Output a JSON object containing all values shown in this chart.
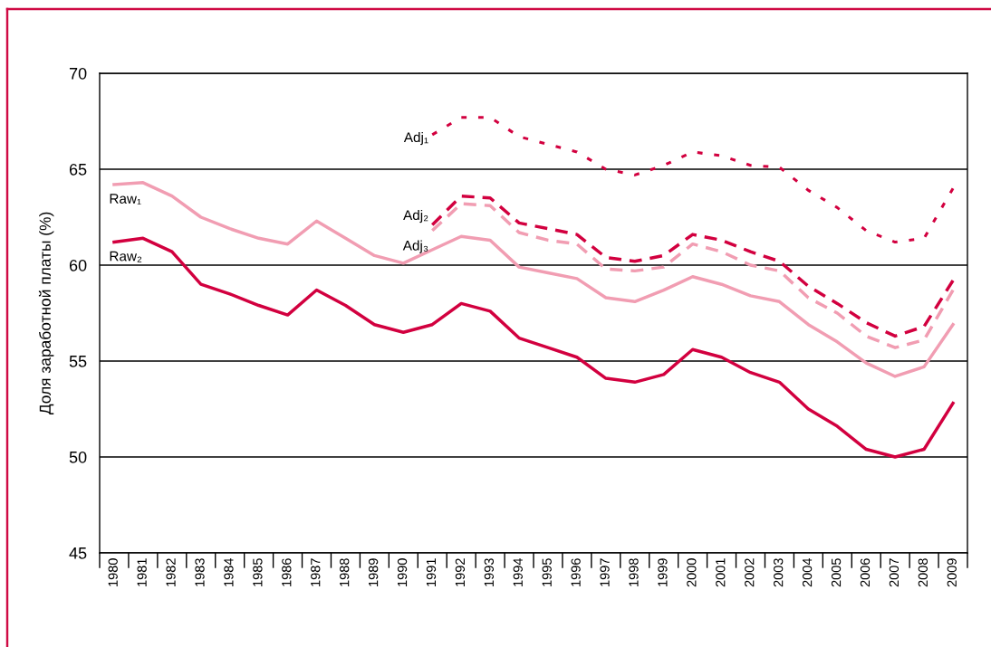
{
  "chart_data": {
    "type": "line",
    "ylabel": "Доля заработной платы (%)",
    "categories": [
      "1980",
      "1981",
      "1982",
      "1983",
      "1984",
      "1985",
      "1986",
      "1987",
      "1988",
      "1989",
      "1990",
      "1991",
      "1992",
      "1993",
      "1994",
      "1995",
      "1996",
      "1997",
      "1998",
      "1999",
      "2000",
      "2001",
      "2002",
      "2003",
      "2004",
      "2005",
      "2006",
      "2007",
      "2008",
      "2009"
    ],
    "series": [
      {
        "name": "Raw₁",
        "color": "#f19db2",
        "line_style": "solid",
        "values": [
          64.2,
          64.3,
          63.6,
          62.5,
          61.9,
          61.4,
          61.1,
          62.3,
          61.4,
          60.5,
          60.1,
          60.8,
          61.5,
          61.3,
          59.9,
          59.6,
          59.3,
          58.3,
          58.1,
          58.7,
          59.4,
          59.0,
          58.4,
          58.1,
          56.9,
          56.0,
          54.9,
          54.2,
          54.7,
          56.9
        ]
      },
      {
        "name": "Raw₂",
        "color": "#d2003f",
        "line_style": "solid",
        "values": [
          61.2,
          61.4,
          60.7,
          59.0,
          58.5,
          57.9,
          57.4,
          58.7,
          57.9,
          56.9,
          56.5,
          56.9,
          58.0,
          57.6,
          56.2,
          55.7,
          55.2,
          54.1,
          53.9,
          54.3,
          55.6,
          55.2,
          54.4,
          53.9,
          52.5,
          51.6,
          50.4,
          50.0,
          50.4,
          52.8
        ]
      },
      {
        "name": "Adj₁",
        "color": "#d2003f",
        "line_style": "dotted",
        "values": [
          null,
          null,
          null,
          null,
          null,
          null,
          null,
          null,
          null,
          null,
          null,
          66.8,
          67.7,
          67.7,
          66.7,
          66.3,
          65.9,
          65.0,
          64.7,
          65.2,
          65.9,
          65.7,
          65.2,
          65.1,
          63.9,
          63.0,
          61.8,
          61.2,
          61.4,
          64.0
        ]
      },
      {
        "name": "Adj₂",
        "color": "#d2003f",
        "line_style": "dashed",
        "values": [
          null,
          null,
          null,
          null,
          null,
          null,
          null,
          null,
          null,
          null,
          null,
          62.1,
          63.6,
          63.5,
          62.2,
          61.9,
          61.6,
          60.4,
          60.2,
          60.5,
          61.6,
          61.3,
          60.7,
          60.2,
          58.9,
          58.0,
          57.0,
          56.3,
          56.8,
          59.2
        ]
      },
      {
        "name": "Adj₃",
        "color": "#f19db2",
        "line_style": "dashed",
        "values": [
          null,
          null,
          null,
          null,
          null,
          null,
          null,
          null,
          null,
          null,
          null,
          61.8,
          63.2,
          63.1,
          61.7,
          61.3,
          61.1,
          59.8,
          59.7,
          59.9,
          61.1,
          60.7,
          60.0,
          59.7,
          58.3,
          57.5,
          56.3,
          55.7,
          56.1,
          58.7
        ]
      }
    ],
    "ylim": [
      45,
      70
    ],
    "yticks": [
      45,
      50,
      55,
      60,
      65,
      70
    ],
    "grid": "y"
  }
}
